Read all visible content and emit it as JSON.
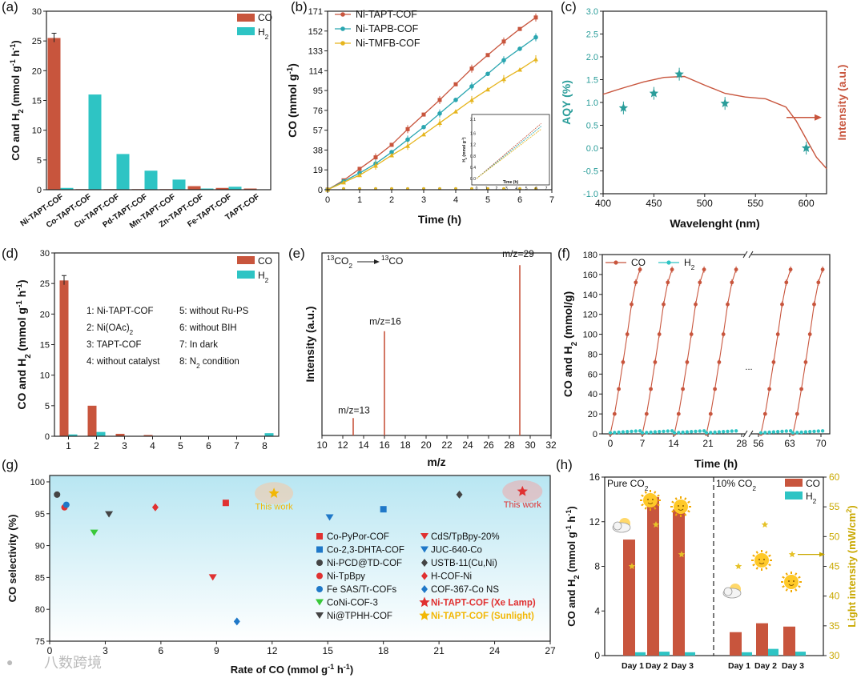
{
  "colors": {
    "co": "#c8553d",
    "h2": "#2ec4c4",
    "ni_taptb": "#c8553d",
    "ni_tapb": "#2aa6b0",
    "ni_tmfb": "#e6b51e",
    "aqy_star": "#2a9d9a",
    "intensity": "#c8553d",
    "light": "#e6c229",
    "plot_bg": "#c5ecf3"
  },
  "watermark": "八数跨境",
  "chart_data": [
    {
      "panel": "(a)",
      "type": "bar",
      "ylabel": "CO and H2 (mmol g-1 h-1)",
      "ylim": [
        0,
        30
      ],
      "yticks": [
        0,
        5,
        10,
        15,
        20,
        25,
        30
      ],
      "categories": [
        "Ni-TAPT-COF",
        "Co-TAPT-COF",
        "Cu-TAPT-COF",
        "Pd-TAPT-COF",
        "Mn-TAPT-COF",
        "Zn-TAPT-COF",
        "Fe-TAPT-COF",
        "TAPT-COF"
      ],
      "series": [
        {
          "name": "CO",
          "values": [
            25.5,
            0.1,
            0.1,
            0.1,
            0.1,
            0.6,
            0.3,
            0.2
          ]
        },
        {
          "name": "H2",
          "values": [
            0.3,
            16.0,
            6.0,
            3.2,
            1.7,
            0.2,
            0.5,
            0.05
          ]
        }
      ]
    },
    {
      "panel": "(b)",
      "type": "line",
      "xlabel": "Time (h)",
      "ylabel": "CO (mmol g-1)",
      "xlim": [
        0,
        7
      ],
      "ylim": [
        0,
        171
      ],
      "xticks": [
        0,
        1,
        2,
        3,
        4,
        5,
        6,
        7
      ],
      "yticks": [
        0,
        19,
        38,
        57,
        76,
        95,
        114,
        133,
        152,
        171
      ],
      "x": [
        0,
        0.5,
        1,
        1.5,
        2,
        2.5,
        3,
        3.5,
        4,
        4.5,
        5,
        5.5,
        6,
        6.5
      ],
      "series": [
        {
          "name": "Ni-TAPT-COF",
          "values": [
            0,
            9,
            20,
            31,
            43,
            58,
            72,
            86,
            101,
            116,
            129,
            142,
            154,
            165
          ]
        },
        {
          "name": "Ni-TAPB-COF",
          "values": [
            0,
            8,
            16,
            25,
            36,
            48,
            60,
            73,
            86,
            99,
            111,
            124,
            135,
            146
          ]
        },
        {
          "name": "Ni-TMFB-COF",
          "values": [
            0,
            7,
            14,
            23,
            33,
            42,
            53,
            64,
            75,
            86,
            96,
            106,
            115,
            125
          ]
        }
      ],
      "h2_baseline": 1,
      "inset": {
        "ylabel": "H2 (mmol g-1)",
        "xlabel": "Time (h)",
        "xticks": [
          0,
          1,
          2,
          3,
          4,
          5,
          6,
          7
        ],
        "yticks": [
          "0.0",
          "0.4",
          "0.8",
          "1.2",
          "1.6",
          "2.1"
        ]
      }
    },
    {
      "panel": "(c)",
      "type": "scatter",
      "xlabel": "Wavelenght (nm)",
      "ylabel": "AQY (%)",
      "ylabel_right": "Intensity (a.u.)",
      "xlim": [
        400,
        620
      ],
      "ylim": [
        -1.0,
        3.0
      ],
      "xticks": [
        400,
        450,
        500,
        550,
        600
      ],
      "yticks": [
        "-1.0",
        "-0.5",
        "0.0",
        "0.5",
        "1.0",
        "1.5",
        "2.0",
        "2.5",
        "3.0"
      ],
      "points": [
        [
          420,
          0.88
        ],
        [
          450,
          1.2
        ],
        [
          475,
          1.62
        ],
        [
          520,
          0.98
        ],
        [
          600,
          0.0
        ]
      ],
      "intensity_curve": [
        [
          400,
          1.18
        ],
        [
          420,
          1.32
        ],
        [
          440,
          1.45
        ],
        [
          460,
          1.55
        ],
        [
          480,
          1.57
        ],
        [
          500,
          1.38
        ],
        [
          520,
          1.2
        ],
        [
          540,
          1.12
        ],
        [
          560,
          1.08
        ],
        [
          580,
          0.9
        ],
        [
          590,
          0.6
        ],
        [
          600,
          0.2
        ],
        [
          610,
          -0.2
        ],
        [
          620,
          -0.45
        ]
      ]
    },
    {
      "panel": "(d)",
      "type": "bar",
      "ylabel": "CO and H2 (mmol g-1 h-1)",
      "ylim": [
        0,
        30
      ],
      "yticks": [
        0,
        5,
        10,
        15,
        20,
        25,
        30
      ],
      "categories": [
        "1",
        "2",
        "3",
        "4",
        "5",
        "6",
        "7",
        "8"
      ],
      "series": [
        {
          "name": "CO",
          "values": [
            25.5,
            5.0,
            0.4,
            0.2,
            0,
            0,
            0,
            0
          ]
        },
        {
          "name": "H2",
          "values": [
            0.3,
            0.7,
            0,
            0,
            0,
            0,
            0,
            0.5
          ]
        }
      ],
      "conditions": [
        "1: Ni-TAPT-COF",
        "2: Ni(OAc)2",
        "3: TAPT-COF",
        "4: without catalyst",
        "5: without Ru-PS",
        "6: without  BIH",
        "7: In dark",
        "8: N2 condition"
      ]
    },
    {
      "panel": "(e)",
      "type": "bar",
      "title": "13CO2 → 13CO",
      "xlabel": "m/z",
      "ylabel": "Intensity (a.u.)",
      "xlim": [
        10,
        32
      ],
      "xticks": [
        10,
        12,
        14,
        16,
        18,
        20,
        22,
        24,
        26,
        28,
        30,
        32
      ],
      "peaks": [
        {
          "mz": 13,
          "intensity": 0.1,
          "label": "m/z=13"
        },
        {
          "mz": 16,
          "intensity": 0.6,
          "label": "m/z=16"
        },
        {
          "mz": 29,
          "intensity": 0.98,
          "label": "m/z=29"
        }
      ]
    },
    {
      "panel": "(f)",
      "type": "line",
      "xlabel": "Time (h)",
      "ylabel": "CO and H2 (mmol/g)",
      "ylim": [
        0,
        180
      ],
      "yticks": [
        0,
        20,
        40,
        60,
        80,
        100,
        120,
        140,
        160,
        180
      ],
      "xticks": [
        "0",
        "7",
        "14",
        "21",
        "28",
        "56",
        "63",
        "70"
      ],
      "break_label": "...",
      "series": [
        {
          "name": "CO",
          "cycle_values": [
            0,
            20,
            45,
            72,
            100,
            130,
            152,
            165
          ]
        },
        {
          "name": "H2",
          "cycle_values": [
            0,
            0.3,
            0.6,
            0.9,
            1.2,
            1.5,
            1.8,
            2.0
          ]
        }
      ],
      "cycles": 6
    },
    {
      "panel": "(g)",
      "type": "scatter",
      "xlabel": "Rate of CO (mmol g-1 h-1)",
      "ylabel": "CO selectivity (%)",
      "xlim": [
        0,
        27
      ],
      "ylim": [
        75,
        101
      ],
      "xticks": [
        0,
        3,
        6,
        9,
        12,
        15,
        18,
        21,
        24,
        27
      ],
      "yticks": [
        75,
        80,
        85,
        90,
        95,
        100
      ],
      "series": [
        {
          "name": "Co-PyPor-COF",
          "x": 9.5,
          "y": 96.7,
          "color": "#e03131",
          "marker": "square"
        },
        {
          "name": "Co-2,3-DHTA-COF",
          "x": 18,
          "y": 95.7,
          "color": "#1f78c8",
          "marker": "square"
        },
        {
          "name": "Ni-PCD@TD-COF",
          "x": 0.4,
          "y": 98,
          "color": "#444444",
          "marker": "circle"
        },
        {
          "name": "Ni-TpBpy",
          "x": 0.8,
          "y": 96,
          "color": "#e03131",
          "marker": "circle"
        },
        {
          "name": "Fe SAS/Tr-COFs",
          "x": 0.9,
          "y": 96.4,
          "color": "#1f78c8",
          "marker": "circle"
        },
        {
          "name": "CoNi-COF-3",
          "x": 2.4,
          "y": 92,
          "color": "#39c83a",
          "marker": "tri-down"
        },
        {
          "name": "Ni@TPHH-COF",
          "x": 3.2,
          "y": 94.9,
          "color": "#444444",
          "marker": "tri-down"
        },
        {
          "name": "CdS/TpBpy-20%",
          "x": 8.8,
          "y": 85,
          "color": "#e03131",
          "marker": "tri-down"
        },
        {
          "name": "JUC-640-Co",
          "x": 15.1,
          "y": 94.4,
          "color": "#1f78c8",
          "marker": "tri-down"
        },
        {
          "name": "USTB-11(Cu,Ni)",
          "x": 22.1,
          "y": 98,
          "color": "#444444",
          "marker": "diamond"
        },
        {
          "name": "H-COF-Ni",
          "x": 5.7,
          "y": 96,
          "color": "#e03131",
          "marker": "diamond"
        },
        {
          "name": "COF-367-Co NS",
          "x": 10.1,
          "y": 78.1,
          "color": "#1f78c8",
          "marker": "diamond"
        },
        {
          "name": "Ni-TAPT-COF (Xe Lamp)",
          "x": 25.5,
          "y": 98.5,
          "color": "#e03131",
          "marker": "star"
        },
        {
          "name": "Ni-TAPT-COF (Sunlight)",
          "x": 12.1,
          "y": 98.2,
          "color": "#f2b705",
          "marker": "star"
        }
      ],
      "annotations": [
        "This work",
        "This work"
      ]
    },
    {
      "panel": "(h)",
      "type": "bar",
      "ylabel": "CO and H2 (mmol g-1 h-1)",
      "ylabel_right": "Light intensity (mW/cm2)",
      "ylim": [
        0,
        16
      ],
      "yticks": [
        0,
        4,
        8,
        12,
        16
      ],
      "ylim_right": [
        30,
        60
      ],
      "yticks_right": [
        30,
        35,
        40,
        45,
        50,
        55,
        60
      ],
      "groups": [
        "Pure CO2",
        "10% CO2"
      ],
      "categories": [
        "Day 1",
        "Day 2",
        "Day 3",
        "Day 1",
        "Day 2",
        "Day 3"
      ],
      "series": [
        {
          "name": "CO",
          "values": [
            10.4,
            14.2,
            13.1,
            2.1,
            2.9,
            2.6
          ]
        },
        {
          "name": "H2",
          "values": [
            0.3,
            0.35,
            0.3,
            0.3,
            0.6,
            0.35
          ]
        }
      ],
      "light_intensity": [
        45,
        52,
        47,
        45,
        52,
        47
      ]
    }
  ]
}
